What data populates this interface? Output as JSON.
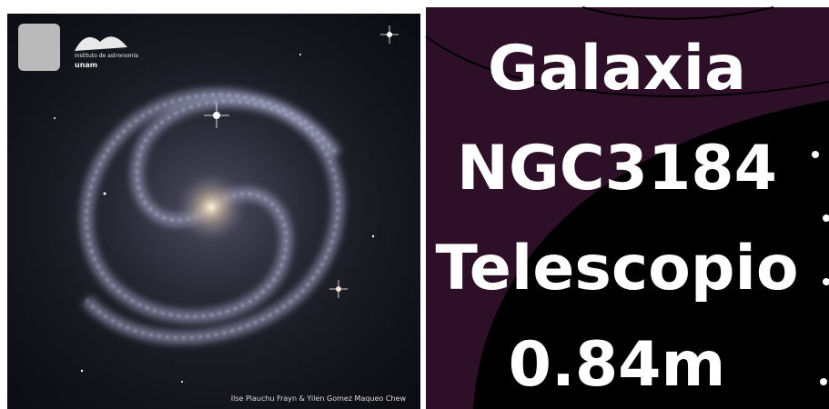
{
  "logo": {
    "line1": "instituto de astronomía",
    "line2": "unam"
  },
  "credit": "Ilse Plauchu Frayn & Yilen Gomez Maqueo Chew",
  "headline": {
    "lines": [
      "Galaxia",
      "NGC3184",
      "Telescopio",
      "0.84m"
    ]
  }
}
